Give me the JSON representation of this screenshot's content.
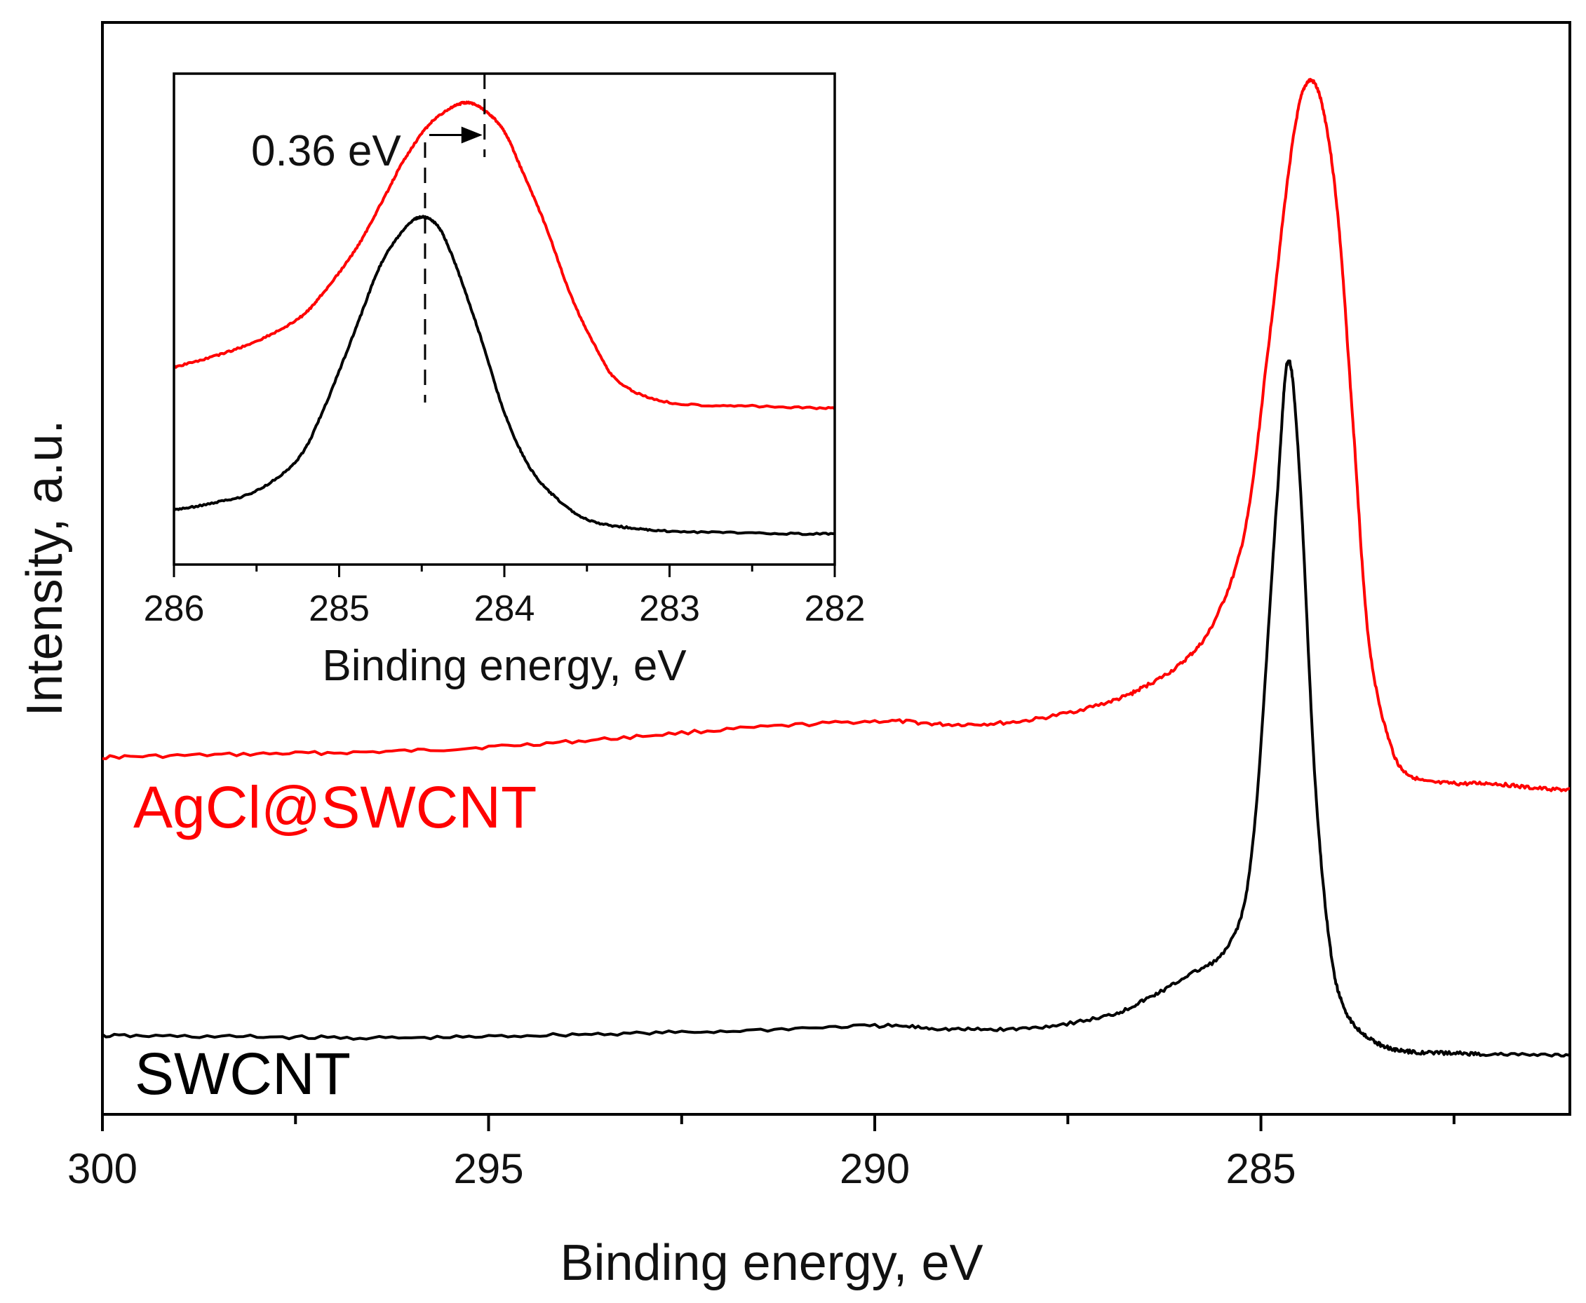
{
  "chart_data": [
    {
      "type": "line",
      "title": "",
      "xlabel": "Binding energy, eV",
      "ylabel": "Intensity, a.u.",
      "xlim": [
        300,
        281
      ],
      "ylim": [
        0,
        1.0
      ],
      "x_ticks": [
        300,
        295,
        290,
        285
      ],
      "x_tick_labels": [
        "300",
        "295",
        "290",
        "285"
      ],
      "x_reversed": true,
      "y_ticks_shown": false,
      "series": [
        {
          "name": "AgCl@SWCNT",
          "color": "#ff0000",
          "x": [
            300,
            298,
            296,
            294,
            292,
            290,
            289,
            288,
            287,
            286.5,
            286,
            285.6,
            285.2,
            284.9,
            284.6,
            284.4,
            284.2,
            284.0,
            283.8,
            283.6,
            283.3,
            283.0,
            282.5,
            282,
            281.5,
            281
          ],
          "y": [
            0.327,
            0.33,
            0.333,
            0.341,
            0.352,
            0.36,
            0.357,
            0.361,
            0.377,
            0.392,
            0.415,
            0.452,
            0.537,
            0.705,
            0.885,
            0.945,
            0.922,
            0.82,
            0.625,
            0.432,
            0.334,
            0.308,
            0.303,
            0.303,
            0.299,
            0.297
          ]
        },
        {
          "name": "SWCNT",
          "color": "#000000",
          "x": [
            300,
            298,
            296,
            294,
            292,
            290,
            289,
            288,
            287,
            286.5,
            286,
            285.4,
            285.1,
            284.8,
            284.65,
            284.5,
            284.3,
            284.1,
            283.9,
            283.6,
            283.3,
            283.0,
            282.5,
            282,
            281
          ],
          "y": [
            0.072,
            0.071,
            0.07,
            0.073,
            0.076,
            0.081,
            0.078,
            0.079,
            0.09,
            0.105,
            0.125,
            0.157,
            0.252,
            0.556,
            0.69,
            0.588,
            0.307,
            0.151,
            0.094,
            0.07,
            0.06,
            0.057,
            0.056,
            0.055,
            0.054
          ]
        }
      ],
      "annotations": [
        {
          "text": "AgCl@SWCNT",
          "color": "#ff0000"
        },
        {
          "text": "SWCNT",
          "color": "#000000"
        }
      ]
    },
    {
      "type": "line",
      "title": "",
      "position_desc": "inset, top-left",
      "xlabel": "Binding energy, eV",
      "ylabel": "",
      "xlim": [
        286,
        282
      ],
      "ylim": [
        0,
        1.0
      ],
      "x_ticks": [
        286,
        285,
        284,
        283,
        282
      ],
      "x_tick_labels": [
        "286",
        "285",
        "284",
        "283",
        "282"
      ],
      "x_reversed": true,
      "series": [
        {
          "name": "AgCl@SWCNT",
          "color": "#ff0000",
          "x": [
            286,
            285.75,
            285.5,
            285.25,
            285.1,
            284.9,
            284.75,
            284.6,
            284.45,
            284.3,
            284.2,
            284.1,
            284.0,
            283.9,
            283.75,
            283.6,
            283.45,
            283.3,
            283.0,
            282.5,
            282
          ],
          "y": [
            0.402,
            0.425,
            0.455,
            0.5,
            0.552,
            0.642,
            0.733,
            0.828,
            0.898,
            0.934,
            0.94,
            0.92,
            0.882,
            0.808,
            0.69,
            0.55,
            0.445,
            0.37,
            0.33,
            0.323,
            0.318
          ]
        },
        {
          "name": "SWCNT",
          "color": "#000000",
          "x": [
            286,
            285.75,
            285.5,
            285.25,
            285.1,
            284.9,
            284.75,
            284.6,
            284.5,
            284.4,
            284.3,
            284.15,
            284.0,
            283.85,
            283.7,
            283.5,
            283.25,
            283.0,
            282.5,
            282
          ],
          "y": [
            0.111,
            0.126,
            0.15,
            0.215,
            0.312,
            0.48,
            0.61,
            0.685,
            0.708,
            0.688,
            0.615,
            0.47,
            0.31,
            0.2,
            0.14,
            0.092,
            0.075,
            0.068,
            0.064,
            0.062
          ]
        }
      ],
      "markers": [
        {
          "x": 284.48,
          "style": "dashed"
        },
        {
          "x": 284.12,
          "style": "dashed"
        }
      ],
      "annotations": [
        {
          "text": "0.36 eV",
          "arrow_from": 284.48,
          "arrow_to": 284.12
        }
      ]
    }
  ]
}
